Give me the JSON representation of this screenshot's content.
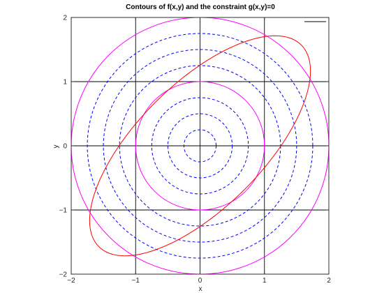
{
  "chart_data": {
    "type": "line",
    "title": "Contours of f(x,y) and the constraint g(x,y)=0",
    "xlabel": "x",
    "ylabel": "y",
    "xlim": [
      -2,
      2
    ],
    "ylim": [
      -2,
      2
    ],
    "x_ticks": [
      -2,
      -1,
      0,
      1,
      2
    ],
    "y_ticks": [
      -2,
      -1,
      0,
      1,
      2
    ],
    "x_tick_labels": [
      "−2",
      "−1",
      "0",
      "1",
      "2"
    ],
    "y_tick_labels": [
      "−2",
      "−1",
      "0",
      "1",
      "2"
    ],
    "grid": true,
    "grid_color": "#000000",
    "legend": {
      "placement": "top-right",
      "entries": [
        {
          "label": "",
          "color": "#000000"
        }
      ]
    },
    "series": [
      {
        "kind": "circle-contours",
        "color": "#ff00ff",
        "line_style": "solid",
        "radii": [
          1,
          2
        ]
      },
      {
        "kind": "circle-contours",
        "color": "#0000ff",
        "line_style": "dashed",
        "radii": [
          0.25,
          0.5,
          0.75,
          1.25,
          1.5,
          1.75
        ]
      },
      {
        "kind": "constraint-ellipse",
        "color": "#ff0000",
        "line_style": "solid",
        "x_extremes": [
          [
            1.571,
            1.571
          ],
          [
            -1.571,
            -1.571
          ]
        ],
        "y_intercepts": [
          1.257,
          -1.257
        ],
        "x_intercepts": [
          1.257,
          -1.257
        ]
      }
    ]
  }
}
